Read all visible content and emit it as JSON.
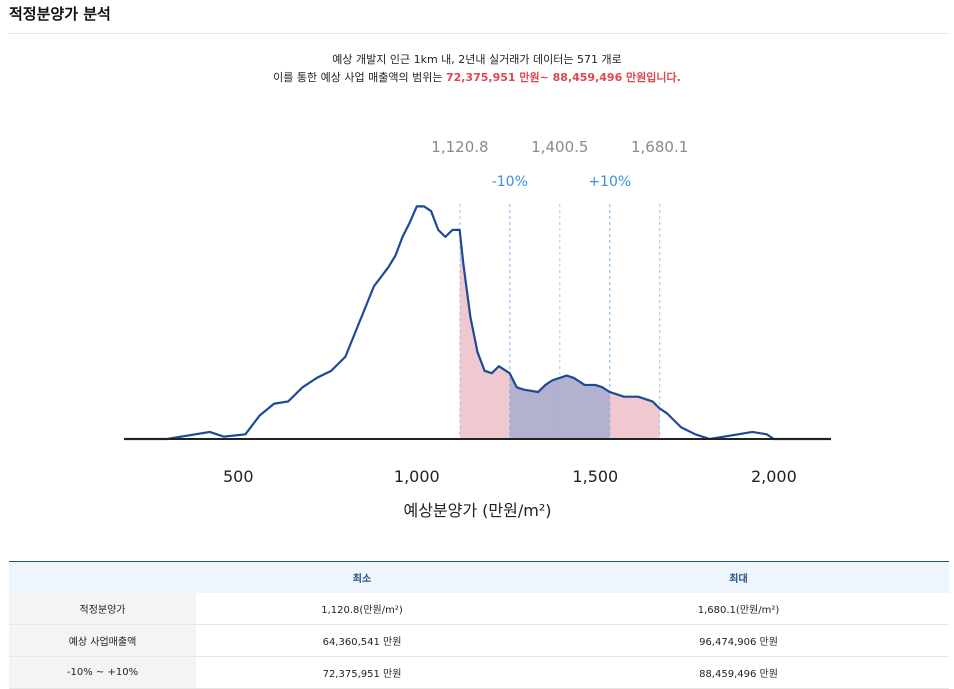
{
  "page_title": "적정분양가 분석",
  "summary": {
    "line1": "예상 개발지 인근 1km 내, 2년내 실거래가 데이터는 571 개로",
    "line2_prefix": "이를 통한 예상 사업 매출액의 범위는 ",
    "line2_highlight": "72,375,951 만원~ 88,459,496 만원입니다."
  },
  "colors": {
    "curve": "#1c4a96",
    "range_fill": "#efc9cf",
    "inner_fill": "#a7aed0",
    "dashed_line": "#7fb2e5",
    "percent_label": "#3c8fe0",
    "top_value_label": "#8a8a8a",
    "highlight_text": "#e0464f"
  },
  "chart_data": {
    "type": "area",
    "xlabel": "예상분양가 (만원/m²)",
    "x_ticks": [
      500,
      1000,
      1500,
      2000
    ],
    "x_tick_labels": [
      "500",
      "1,000",
      "1,500",
      "2,000"
    ],
    "xlim": [
      180,
      2160
    ],
    "ylim": [
      0,
      1
    ],
    "density_curve": {
      "x": [
        180,
        300,
        380,
        420,
        460,
        520,
        560,
        600,
        640,
        680,
        720,
        760,
        800,
        840,
        880,
        920,
        940,
        960,
        980,
        1000,
        1020,
        1040,
        1060,
        1080,
        1100,
        1120,
        1130,
        1150,
        1170,
        1190,
        1210,
        1230,
        1260,
        1280,
        1300,
        1340,
        1360,
        1380,
        1420,
        1440,
        1470,
        1500,
        1520,
        1540,
        1560,
        1580,
        1620,
        1660,
        1680,
        1700,
        1740,
        1780,
        1820,
        1860,
        1900,
        1940,
        1980,
        2000,
        2050,
        2160
      ],
      "y": [
        0,
        0,
        0.02,
        0.03,
        0.01,
        0.02,
        0.1,
        0.15,
        0.16,
        0.22,
        0.26,
        0.29,
        0.35,
        0.5,
        0.65,
        0.73,
        0.78,
        0.86,
        0.92,
        0.99,
        0.99,
        0.97,
        0.89,
        0.86,
        0.89,
        0.89,
        0.75,
        0.52,
        0.37,
        0.29,
        0.28,
        0.31,
        0.28,
        0.22,
        0.21,
        0.2,
        0.23,
        0.25,
        0.27,
        0.26,
        0.23,
        0.23,
        0.22,
        0.2,
        0.19,
        0.18,
        0.18,
        0.16,
        0.13,
        0.11,
        0.05,
        0.02,
        0.0,
        0.01,
        0.02,
        0.03,
        0.02,
        0.0,
        0,
        0
      ]
    },
    "range_markers": {
      "min": 1120.8,
      "mid": 1400.5,
      "max": 1680.1,
      "minus10": 1260.5,
      "plus10": 1540.4,
      "labels": [
        "1,120.8",
        "1,400.5",
        "1,680.1"
      ],
      "minus10_label": "-10%",
      "plus10_label": "+10%"
    }
  },
  "table": {
    "headers": [
      "",
      "최소",
      "최대"
    ],
    "rows": [
      {
        "label": "적정분양가",
        "min": "1,120.8(만원/m²)",
        "max": "1,680.1(만원/m²)"
      },
      {
        "label": "예상 사업매출액",
        "min": "64,360,541 만원",
        "max": "96,474,906 만원"
      },
      {
        "label": "-10% ~ +10%",
        "min": "72,375,951 만원",
        "max": "88,459,496 만원"
      }
    ]
  }
}
